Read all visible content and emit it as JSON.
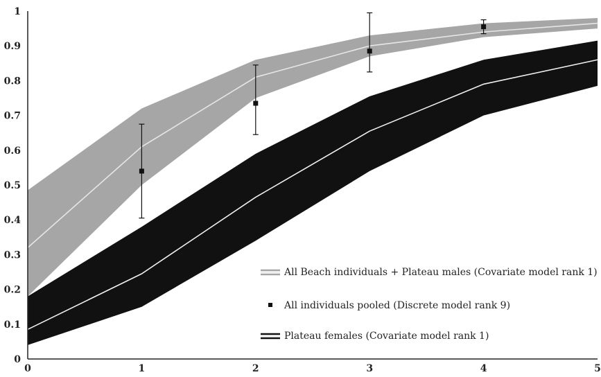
{
  "chart_data": {
    "type": "area",
    "title": "",
    "xlabel": "",
    "ylabel": "",
    "xlim": [
      0,
      5
    ],
    "ylim": [
      0,
      1
    ],
    "x_ticks": [
      "0",
      "1",
      "2",
      "3",
      "4",
      "5"
    ],
    "y_ticks": [
      "0",
      "0.1",
      "0.2",
      "0.3",
      "0.4",
      "0.5",
      "0.6",
      "0.7",
      "0.8",
      "0.9",
      "1"
    ],
    "grid": false,
    "legend_position": "bottom-right",
    "series": [
      {
        "name": "All Beach individuals + Plateau males (Covariate model rank 1)",
        "kind": "band",
        "band_color": "#a6a6a6",
        "line_color": "#e6e6e6",
        "x": [
          0,
          1,
          2,
          3,
          4,
          5
        ],
        "mean": [
          0.32,
          0.61,
          0.81,
          0.9,
          0.94,
          0.965
        ],
        "lower": [
          0.18,
          0.5,
          0.75,
          0.87,
          0.925,
          0.95
        ],
        "upper": [
          0.485,
          0.72,
          0.86,
          0.93,
          0.965,
          0.98
        ]
      },
      {
        "name": "All individuals pooled (Discrete model rank 9)",
        "kind": "points",
        "color": "#111111",
        "x": [
          1,
          2,
          3,
          4
        ],
        "y": [
          0.54,
          0.735,
          0.885,
          0.955
        ],
        "err_low": [
          0.405,
          0.645,
          0.825,
          0.935
        ],
        "err_high": [
          0.675,
          0.845,
          0.995,
          0.975
        ]
      },
      {
        "name": "Plateau females (Covariate model rank 1)",
        "kind": "band",
        "band_color": "#111111",
        "line_color": "#f0f0f0",
        "x": [
          0,
          1,
          2,
          3,
          4,
          5
        ],
        "mean": [
          0.085,
          0.245,
          0.465,
          0.655,
          0.79,
          0.86
        ],
        "lower": [
          0.04,
          0.15,
          0.34,
          0.54,
          0.7,
          0.785
        ],
        "upper": [
          0.18,
          0.38,
          0.59,
          0.755,
          0.86,
          0.915
        ]
      }
    ]
  }
}
